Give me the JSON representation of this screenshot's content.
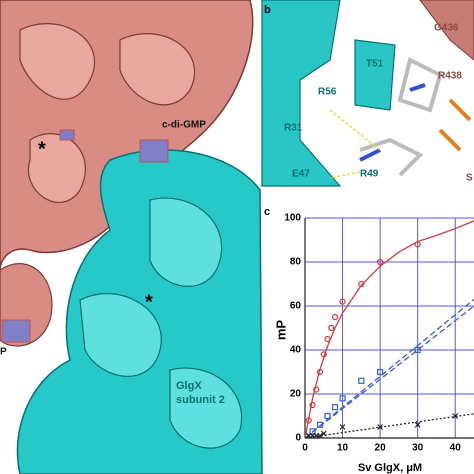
{
  "panel_a": {
    "labels": [
      "c-di-GMP",
      "*",
      "*",
      "GlgX",
      "subunit 2",
      "P"
    ]
  },
  "panel_b": {
    "letter": "b",
    "labels": [
      "G436",
      "T51",
      "R56",
      "R438",
      "R31",
      "E47",
      "R49",
      "S"
    ]
  },
  "chart_data": {
    "type": "scatter",
    "letter": "c",
    "ylabel": "mP",
    "xlabel": "Sv GlgX, μM",
    "xlim": [
      0,
      45
    ],
    "ylim": [
      0,
      100
    ],
    "xticks": [
      0,
      10,
      20,
      30,
      40
    ],
    "yticks": [
      0,
      20,
      40,
      60,
      80,
      100
    ],
    "grid": true,
    "grid_color": "#5a5ac8",
    "series": [
      {
        "color": "#d23a3a",
        "marker": "circle",
        "x": [
          1,
          2,
          3,
          4,
          5,
          6,
          7,
          8,
          10,
          15,
          20,
          30
        ],
        "values": [
          8,
          15,
          22,
          30,
          38,
          45,
          50,
          55,
          62,
          70,
          80,
          88
        ]
      },
      {
        "color": "#d23a3a",
        "marker": "line",
        "x": [
          0,
          2,
          4,
          6,
          8,
          10,
          15,
          20,
          25,
          30,
          35,
          40,
          45
        ],
        "values": [
          0,
          17.9,
          31.3,
          41.7,
          50,
          56.8,
          69.4,
          78.1,
          84.5,
          89.3,
          92.1,
          95.2,
          98.7
        ]
      },
      {
        "color": "#3a5fc8",
        "marker": "square",
        "x": [
          2,
          4,
          6,
          8,
          10,
          15,
          20,
          30
        ],
        "values": [
          3,
          6,
          10,
          14,
          18,
          26,
          30,
          40
        ]
      },
      {
        "color": "#3a5fc8",
        "marker": "dashed",
        "x": [
          0,
          45
        ],
        "values": [
          0,
          60
        ]
      },
      {
        "color": "#3a5fc8",
        "marker": "dashed",
        "x": [
          0,
          45
        ],
        "values": [
          0,
          63
        ]
      },
      {
        "color": "#222222",
        "marker": "x",
        "x": [
          1,
          2,
          3,
          4,
          5,
          10,
          20,
          30,
          40
        ],
        "values": [
          1,
          1,
          1,
          1,
          2,
          5,
          5,
          6,
          10
        ]
      },
      {
        "color": "#222222",
        "marker": "dotted",
        "x": [
          0,
          45
        ],
        "values": [
          0,
          11
        ]
      }
    ]
  }
}
